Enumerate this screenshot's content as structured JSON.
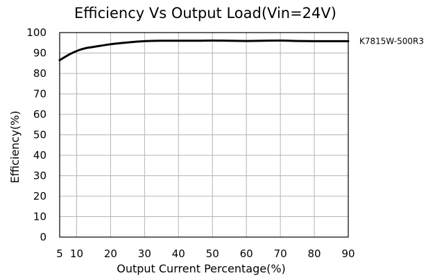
{
  "chart_data": {
    "type": "line",
    "title": "Efficiency Vs Output Load(Vin=24V)",
    "xlabel": "Output Current Percentage(%)",
    "ylabel": "Efficiency(%)",
    "xlim": [
      5,
      90
    ],
    "ylim": [
      0,
      100
    ],
    "xticks": [
      "5",
      "10",
      "20",
      "30",
      "40",
      "50",
      "60",
      "70",
      "80",
      "90"
    ],
    "yticks": [
      "0",
      "10",
      "20",
      "30",
      "40",
      "50",
      "60",
      "70",
      "80",
      "90",
      "100"
    ],
    "grid": true,
    "legend_position": "right",
    "series": [
      {
        "name": "K7815W-500R3",
        "color": "#000000",
        "x": [
          5,
          7.5,
          10,
          12.5,
          15,
          20,
          25,
          30,
          35,
          40,
          45,
          50,
          55,
          60,
          65,
          70,
          75,
          80,
          85,
          90
        ],
        "y": [
          86.5,
          89.0,
          91.0,
          92.3,
          93.0,
          94.3,
          95.2,
          95.8,
          96.0,
          96.0,
          96.0,
          96.1,
          96.0,
          95.9,
          96.0,
          96.1,
          95.9,
          95.8,
          95.8,
          95.8
        ]
      }
    ]
  }
}
